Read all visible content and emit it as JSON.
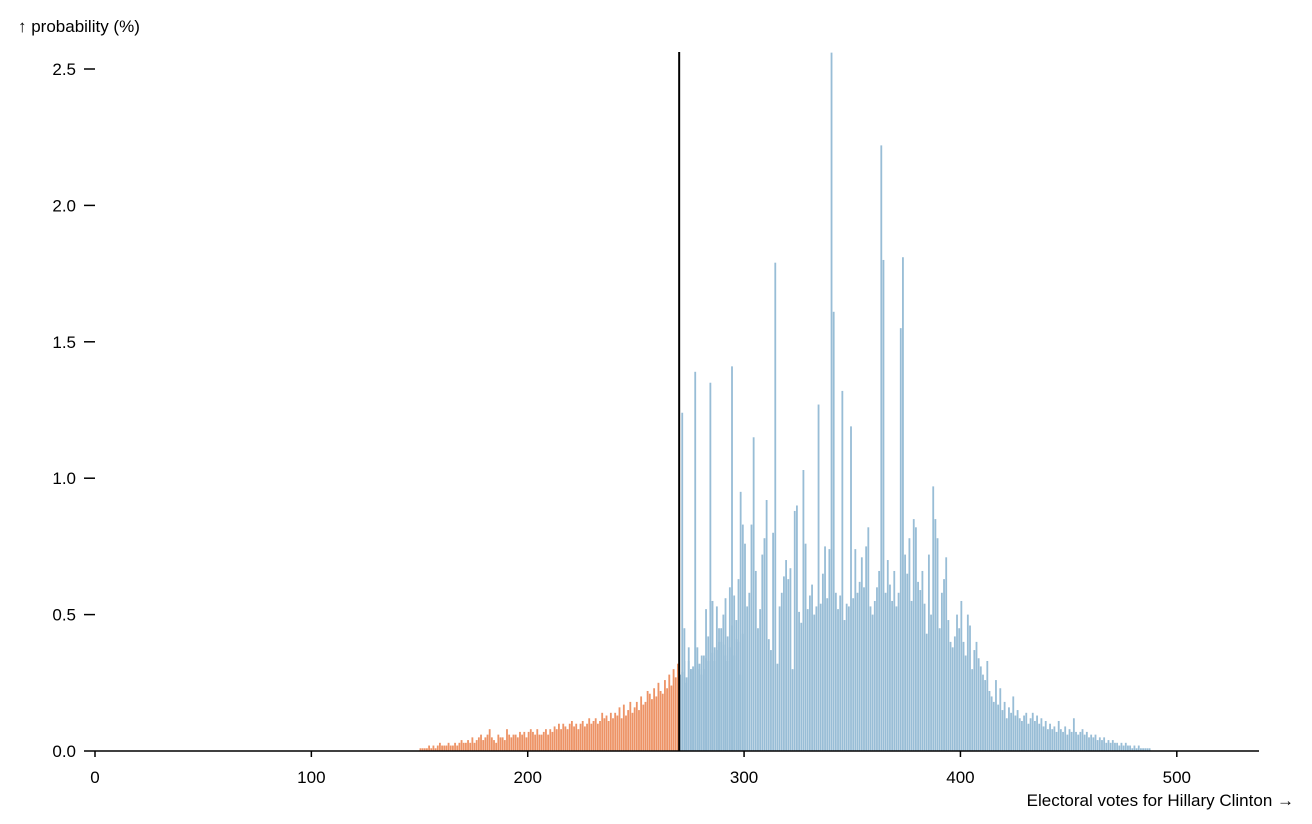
{
  "chart_data": {
    "type": "bar",
    "xlabel": "Electoral votes for Hillary Clinton →",
    "ylabel": "↑ probability (%)",
    "xlim": [
      0,
      538
    ],
    "ylim": [
      0,
      2.6
    ],
    "x_ticks": [
      "0",
      "100",
      "200",
      "300",
      "400",
      "500"
    ],
    "y_ticks": [
      "0.0",
      "0.5",
      "1.0",
      "1.5",
      "2.0",
      "2.5"
    ],
    "threshold": 270,
    "colors": {
      "loss": "#ed9366",
      "win": "#98bdd6",
      "threshold_line": "#000000"
    },
    "series": [
      {
        "x_start": 150,
        "values": [
          0.01,
          0.01,
          0.01,
          0.01,
          0.02,
          0.01,
          0.02,
          0.01,
          0.02,
          0.03,
          0.02,
          0.02,
          0.02,
          0.03,
          0.02,
          0.02,
          0.03,
          0.02,
          0.03,
          0.04,
          0.03,
          0.03,
          0.04,
          0.03,
          0.05,
          0.03,
          0.04,
          0.05,
          0.06,
          0.04,
          0.05,
          0.06,
          0.08,
          0.05,
          0.04,
          0.03,
          0.06,
          0.05,
          0.05,
          0.04,
          0.08,
          0.06,
          0.05,
          0.06,
          0.06,
          0.05,
          0.07,
          0.06,
          0.07,
          0.05,
          0.07,
          0.08,
          0.07,
          0.06,
          0.08,
          0.06,
          0.06,
          0.07,
          0.08,
          0.06,
          0.08,
          0.07,
          0.09,
          0.08,
          0.1,
          0.08,
          0.1,
          0.09,
          0.08,
          0.1,
          0.11,
          0.09,
          0.1,
          0.08,
          0.1,
          0.11,
          0.09,
          0.1,
          0.12,
          0.1,
          0.11,
          0.12,
          0.1,
          0.11,
          0.14,
          0.12,
          0.13,
          0.11,
          0.14,
          0.12,
          0.14,
          0.13,
          0.16,
          0.12,
          0.17,
          0.13,
          0.15,
          0.18,
          0.14,
          0.16,
          0.18,
          0.15,
          0.2,
          0.17,
          0.18,
          0.22,
          0.21,
          0.19,
          0.23,
          0.2,
          0.25,
          0.22,
          0.21,
          0.26,
          0.23,
          0.28,
          0.24,
          0.3,
          0.27,
          0.32,
          0.27,
          0.29,
          0.33,
          0.25,
          0.38,
          0.3,
          0.31,
          0.48,
          0.32,
          0.3,
          0.28,
          0.35,
          0.34,
          0.33,
          0.55,
          0.36,
          0.38,
          0.53,
          0.45,
          0.4,
          0.39,
          0.35,
          0.33,
          0.6,
          0.46,
          0.57,
          0.41,
          0.4,
          0.95,
          0.43
        ]
      },
      {
        "x_start": 270,
        "values": [
          0.28,
          1.24,
          0.45,
          0.27,
          0.33,
          0.3,
          0.3,
          1.39,
          0.38,
          0.32,
          0.35,
          0.3,
          0.52,
          0.42,
          1.35,
          0.55,
          0.33,
          0.37,
          0.4,
          0.45,
          0.5,
          0.56,
          0.42,
          0.38,
          1.41,
          0.35,
          0.48,
          0.63,
          0.28,
          0.83,
          0.76,
          0.53,
          0.58,
          0.83,
          1.15,
          0.66,
          0.45,
          0.52,
          0.72,
          0.78,
          0.92,
          0.41,
          0.37,
          0.8,
          1.79,
          0.32,
          0.53,
          0.58,
          0.64,
          0.7,
          0.63,
          0.67,
          0.3,
          0.88,
          0.9,
          0.51,
          0.47,
          1.03,
          0.76,
          0.52,
          0.57,
          0.61,
          0.5,
          0.53,
          1.27,
          0.54,
          0.65,
          0.75,
          0.56,
          0.74,
          2.56,
          1.61,
          0.58,
          0.52,
          0.57,
          1.32,
          0.48,
          0.54,
          0.53,
          1.19,
          0.56,
          0.74,
          0.58,
          0.62,
          0.71,
          0.6,
          0.75,
          0.82,
          0.53,
          0.5,
          0.55,
          0.6,
          0.66,
          2.22,
          1.8,
          0.58,
          0.7,
          0.61,
          0.55,
          0.66,
          0.53,
          0.58,
          1.55,
          1.81,
          0.72,
          0.65,
          0.78,
          0.55,
          0.85,
          0.82,
          0.62,
          0.59,
          0.66,
          0.54,
          0.43,
          0.72,
          0.5,
          0.97,
          0.85,
          0.78,
          0.45,
          0.58,
          0.63,
          0.71,
          0.48,
          0.4,
          0.38,
          0.42,
          0.5,
          0.45,
          0.55,
          0.4,
          0.35,
          0.5,
          0.46,
          0.3,
          0.37,
          0.4,
          0.34,
          0.31,
          0.28,
          0.26,
          0.33,
          0.22,
          0.2,
          0.18,
          0.26,
          0.17,
          0.23,
          0.15,
          0.18,
          0.12,
          0.16,
          0.14,
          0.2,
          0.13,
          0.15,
          0.12,
          0.11,
          0.13,
          0.14,
          0.1,
          0.12,
          0.14,
          0.11,
          0.13,
          0.1,
          0.12,
          0.09,
          0.11,
          0.08,
          0.1,
          0.08,
          0.09,
          0.07,
          0.11,
          0.08,
          0.07,
          0.09,
          0.06,
          0.08,
          0.07,
          0.12,
          0.07,
          0.06,
          0.07,
          0.08,
          0.06,
          0.07,
          0.05,
          0.06,
          0.05,
          0.06,
          0.04,
          0.05,
          0.04,
          0.05,
          0.03,
          0.04,
          0.03,
          0.04,
          0.03,
          0.03,
          0.02,
          0.03,
          0.02,
          0.03,
          0.02,
          0.02,
          0.01,
          0.02,
          0.01,
          0.02,
          0.01,
          0.01,
          0.01,
          0.01,
          0.01
        ]
      }
    ]
  }
}
